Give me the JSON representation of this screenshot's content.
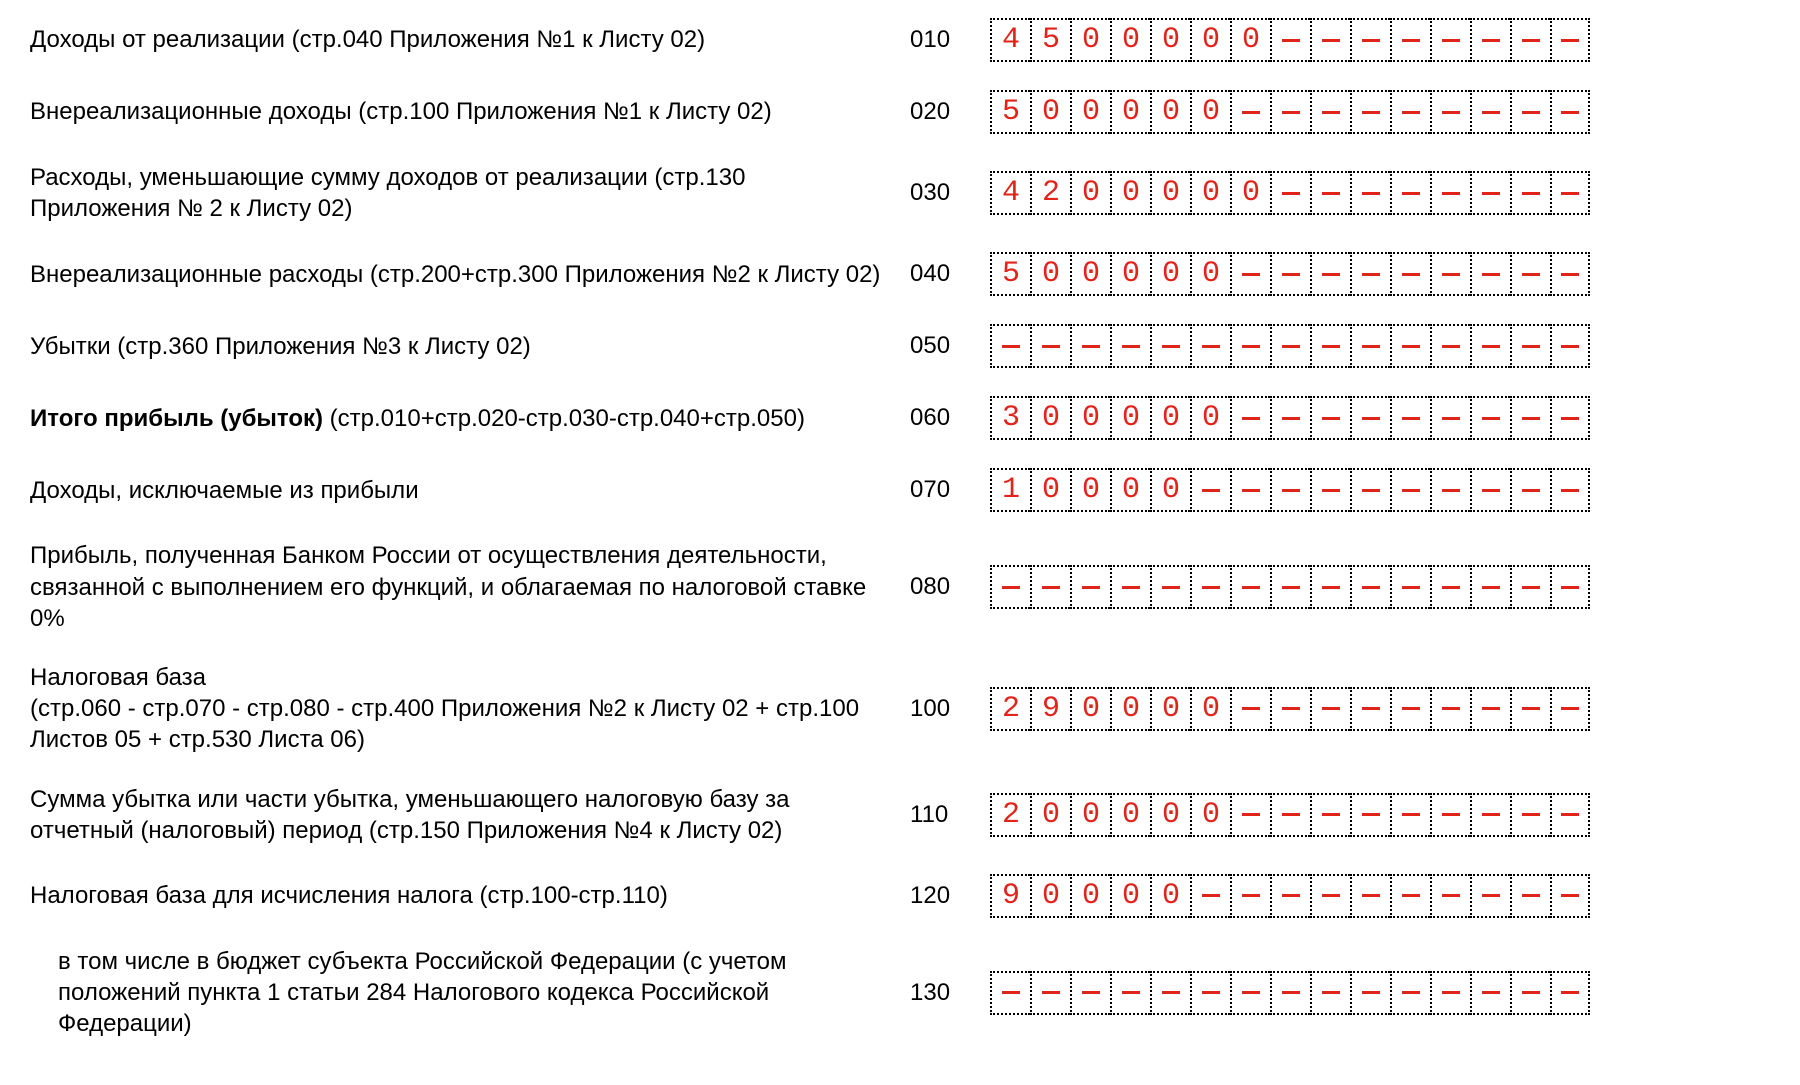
{
  "form": {
    "cell_count": 15,
    "colors": {
      "value": "#e2231a",
      "border": "#000000",
      "text": "#000000",
      "bg": "#ffffff"
    },
    "rows": [
      {
        "label": "Доходы от реализации (стр.040 Приложения №1 к Листу 02)",
        "code": "010",
        "value": "4500000"
      },
      {
        "label": "Внереализационные доходы (стр.100 Приложения №1 к Листу 02)",
        "code": "020",
        "value": "500000"
      },
      {
        "label": "Расходы, уменьшающие сумму доходов от реализации (стр.130 Приложения № 2 к Листу 02)",
        "code": "030",
        "value": "4200000"
      },
      {
        "label": "Внереализационные расходы (стр.200+стр.300 Приложения №2 к Листу 02)",
        "code": "040",
        "value": "500000"
      },
      {
        "label": "Убытки (стр.360 Приложения №3 к Листу 02)",
        "code": "050",
        "value": ""
      },
      {
        "label_bold": "Итого прибыль (убыток)",
        "label_rest": " (стр.010+стр.020-стр.030-стр.040+стр.050)",
        "code": "060",
        "value": "300000"
      },
      {
        "label": "Доходы, исключаемые из прибыли",
        "code": "070",
        "value": "10000"
      },
      {
        "label": "Прибыль, полученная Банком России от осуществления деятельности, связанной с выполнением его функций, и облагаемая по налоговой ставке 0%",
        "code": "080",
        "value": ""
      },
      {
        "label": "Налоговая база\n(стр.060 - стр.070 - стр.080 - стр.400 Приложения №2 к Листу 02 + стр.100 Листов 05 + стр.530 Листа 06)",
        "code": "100",
        "value": "290000"
      },
      {
        "label": "Сумма убытка или части убытка, уменьшающего налоговую базу за отчетный (налоговый) период (стр.150 Приложения №4 к Листу 02)",
        "code": "110",
        "value": "200000"
      },
      {
        "label": "Налоговая база для исчисления налога (стр.100-стр.110)",
        "code": "120",
        "value": "90000"
      },
      {
        "label_sub": "в том числе в бюджет субъекта Российской Федерации (с учетом положений пункта 1 статьи 284 Налогового кодекса Российской Федерации)",
        "code": "130",
        "value": ""
      }
    ]
  }
}
